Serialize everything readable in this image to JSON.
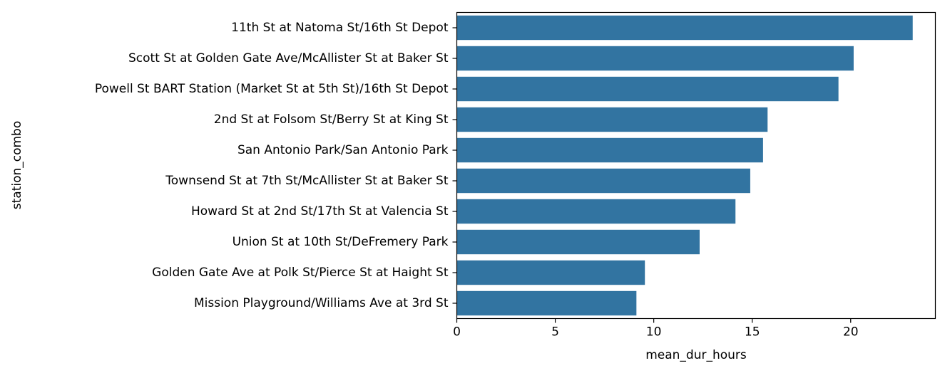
{
  "chart_data": {
    "type": "bar",
    "orientation": "horizontal",
    "xlabel": "mean_dur_hours",
    "ylabel": "station_combo",
    "xlim": [
      0,
      24.3
    ],
    "xticks": [
      0,
      5,
      10,
      15,
      20
    ],
    "xtick_labels": [
      "0",
      "5",
      "10",
      "15",
      "20"
    ],
    "grid": false,
    "bar_color": "#3274a1",
    "categories": [
      "11th St at Natoma St/16th St Depot",
      "Scott St at Golden Gate Ave/McAllister St at Baker St",
      "Powell St BART Station (Market St at 5th St)/16th St Depot",
      "2nd St at Folsom St/Berry St at King St",
      "San Antonio Park/San Antonio Park",
      "Townsend St at 7th St/McAllister St at Baker St",
      "Howard St at 2nd St/17th St at Valencia St",
      "Union St at 10th St/DeFremery Park",
      "Golden Gate Ave at Polk St/Pierce St at Haight St",
      "Mission Playground/Williams Ave at 3rd St"
    ],
    "values": [
      23.15,
      20.15,
      19.38,
      15.78,
      15.55,
      14.9,
      14.15,
      12.33,
      9.55,
      9.12
    ]
  }
}
